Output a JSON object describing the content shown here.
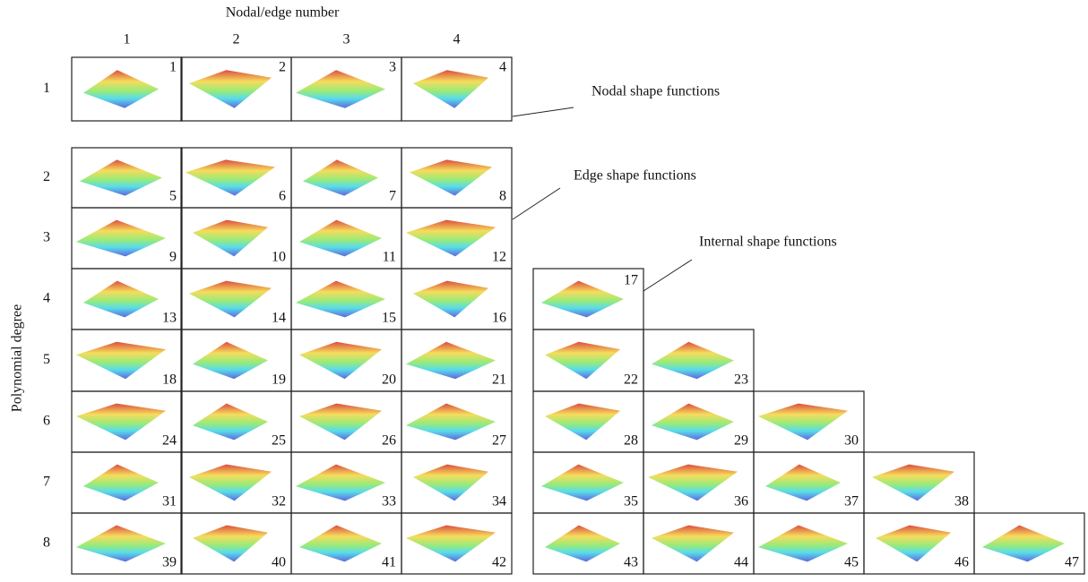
{
  "header": {
    "title": "Nodal/edge number",
    "columns": [
      1,
      2,
      3,
      4
    ]
  },
  "y_axis_label": "Polynomial degree",
  "rows": [
    {
      "degree": 1,
      "nodal_edge": [
        1,
        2,
        3,
        4
      ],
      "internal": []
    },
    {
      "degree": 2,
      "nodal_edge": [
        5,
        6,
        7,
        8
      ],
      "internal": []
    },
    {
      "degree": 3,
      "nodal_edge": [
        9,
        10,
        11,
        12
      ],
      "internal": []
    },
    {
      "degree": 4,
      "nodal_edge": [
        13,
        14,
        15,
        16
      ],
      "internal": [
        17
      ]
    },
    {
      "degree": 5,
      "nodal_edge": [
        18,
        19,
        20,
        21
      ],
      "internal": [
        22,
        23
      ]
    },
    {
      "degree": 6,
      "nodal_edge": [
        24,
        25,
        26,
        27
      ],
      "internal": [
        28,
        29,
        30
      ]
    },
    {
      "degree": 7,
      "nodal_edge": [
        31,
        32,
        33,
        34
      ],
      "internal": [
        35,
        36,
        37,
        38
      ]
    },
    {
      "degree": 8,
      "nodal_edge": [
        39,
        40,
        41,
        42
      ],
      "internal": [
        43,
        44,
        45,
        46,
        47
      ]
    }
  ],
  "annotations": {
    "nodal": "Nodal shape functions",
    "edge": "Edge shape functions",
    "internal": "Internal shape functions"
  }
}
